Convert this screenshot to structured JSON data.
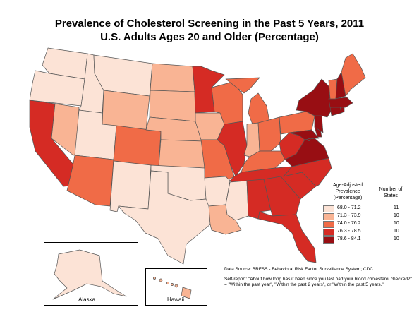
{
  "title": {
    "line1": "Prevalence of Cholesterol Screening in the Past 5 Years, 2011",
    "line2": "U.S. Adults Ages 20 and Older (Percentage)"
  },
  "legend": {
    "header": "Age-Adjusted Prevalence (Percentage)",
    "count_header": "Number of States",
    "classes": [
      {
        "range": "68.0 - 71.2",
        "count": "11",
        "color": "#fce3d6"
      },
      {
        "range": "71.3 - 73.9",
        "count": "10",
        "color": "#f9b494"
      },
      {
        "range": "74.0 - 76.2",
        "count": "10",
        "color": "#f06b47"
      },
      {
        "range": "76.3 - 78.5",
        "count": "10",
        "color": "#d52b24"
      },
      {
        "range": "78.6 - 84.1",
        "count": "10",
        "color": "#980e13"
      }
    ]
  },
  "insets": {
    "alaska": "Alaska",
    "hawaii": "Hawaii"
  },
  "source": {
    "line1": "Data Source: BRFSS - Behavioral Risk Factor Surveillance System; CDC.",
    "line2": "Self-report: \"About how long has it been since you last had your blood cholesterol checked?\" = \"Within the past year\", \"Within the past 2 years\", or \"Within the past 5 years.\""
  },
  "states": {
    "WA": 0,
    "OR": 0,
    "ID": 0,
    "MT": 0,
    "UT": 0,
    "NM": 0,
    "OK": 0,
    "AR": 0,
    "MS": 0,
    "TX": 0,
    "AK": 0,
    "NV": 1,
    "WY": 1,
    "ND": 1,
    "SD": 1,
    "NE": 1,
    "KS": 1,
    "IA": 1,
    "IN": 1,
    "LA": 1,
    "HI": 1,
    "AZ": 2,
    "CO": 2,
    "WI": 2,
    "MO": 2,
    "KY": 2,
    "MI": 2,
    "OH": 2,
    "PA": 2,
    "VT": 2,
    "ME": 2,
    "CA": 3,
    "MN": 3,
    "IL": 3,
    "WV": 3,
    "TN": 3,
    "AL": 3,
    "GA": 3,
    "SC": 3,
    "NC": 3,
    "FL": 3,
    "NY": 4,
    "NH": 4,
    "MA": 4,
    "CT": 4,
    "RI": 4,
    "NJ": 4,
    "DE": 4,
    "MD": 4,
    "VA": 4,
    "DC": 4
  }
}
